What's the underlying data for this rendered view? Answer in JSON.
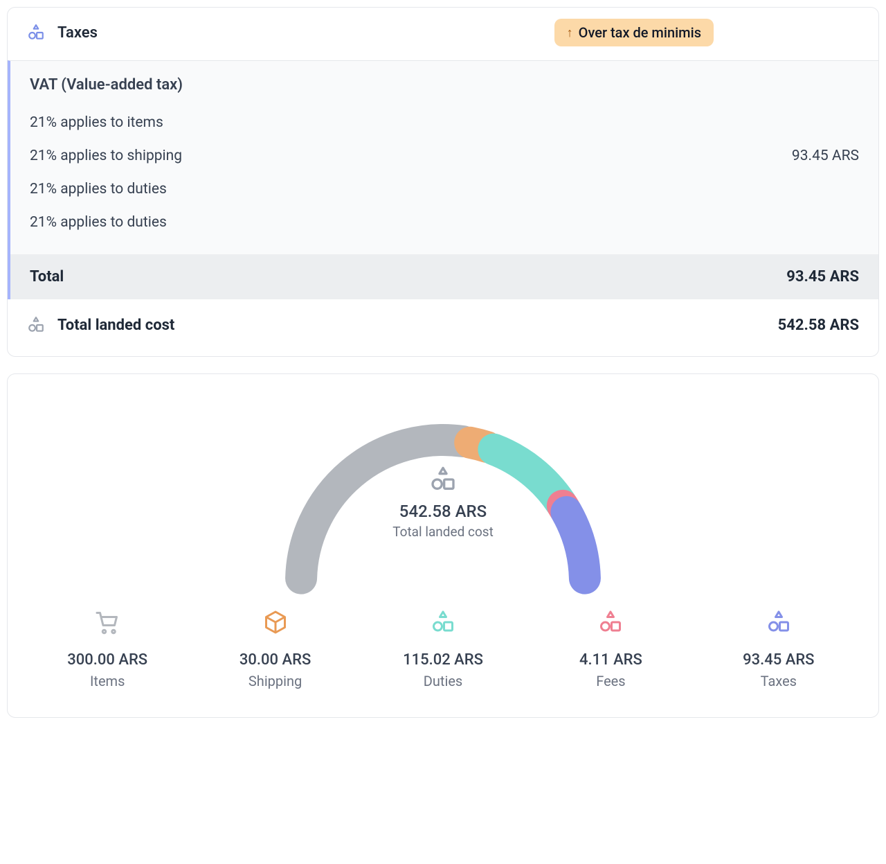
{
  "taxes": {
    "header_label": "Taxes",
    "badge_text": "Over tax de minimis",
    "vat_title": "VAT (Value-added tax)",
    "lines": [
      {
        "label": "21% applies to items",
        "amount": ""
      },
      {
        "label": "21% applies to shipping",
        "amount": "93.45 ARS"
      },
      {
        "label": "21% applies to duties",
        "amount": ""
      },
      {
        "label": "21% applies to duties",
        "amount": ""
      }
    ],
    "total_label": "Total",
    "total_amount": "93.45 ARS",
    "icon_color": "#7b8fe8"
  },
  "landed": {
    "label": "Total landed cost",
    "amount": "542.58 ARS",
    "icon_color": "#9ca3af"
  },
  "gauge": {
    "type": "semicircle-donut",
    "total_value": 542.58,
    "center_amount": "542.58 ARS",
    "center_sub": "Total landed cost",
    "center_icon_color": "#9ca3af",
    "stroke_width": 46,
    "gap_deg": 3,
    "background_color": "#ffffff",
    "segments": [
      {
        "key": "items",
        "value": 300.0,
        "color": "#b3b7bd"
      },
      {
        "key": "shipping",
        "value": 30.0,
        "color": "#eeac74"
      },
      {
        "key": "duties",
        "value": 115.02,
        "color": "#79dccf"
      },
      {
        "key": "fees",
        "value": 4.11,
        "color": "#ef7f91"
      },
      {
        "key": "taxes",
        "value": 93.45,
        "color": "#8490e8"
      }
    ]
  },
  "legend": [
    {
      "key": "items",
      "icon": "cart",
      "icon_color": "#b3b7bd",
      "amount": "300.00 ARS",
      "label": "Items"
    },
    {
      "key": "shipping",
      "icon": "box",
      "icon_color": "#e99a54",
      "amount": "30.00 ARS",
      "label": "Shipping"
    },
    {
      "key": "duties",
      "icon": "shapes",
      "icon_color": "#79dccf",
      "amount": "115.02 ARS",
      "label": "Duties"
    },
    {
      "key": "fees",
      "icon": "shapes",
      "icon_color": "#ef7f91",
      "amount": "4.11 ARS",
      "label": "Fees"
    },
    {
      "key": "taxes",
      "icon": "shapes",
      "icon_color": "#8490e8",
      "amount": "93.45 ARS",
      "label": "Taxes"
    }
  ]
}
